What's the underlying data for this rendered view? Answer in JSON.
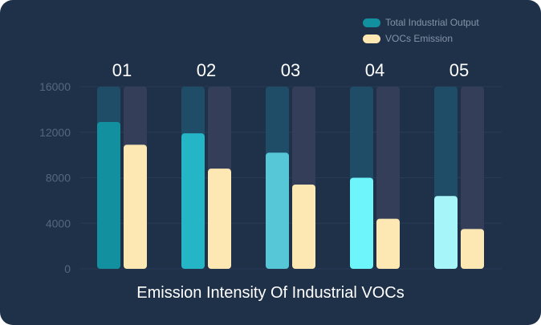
{
  "chart_data": {
    "type": "bar",
    "title": "Emission Intensity Of Industrial VOCs",
    "categories": [
      "01",
      "02",
      "03",
      "04",
      "05"
    ],
    "series": [
      {
        "name": "Total Industrial Output",
        "values": [
          12900,
          11900,
          10200,
          8000,
          6400
        ],
        "colors": [
          "#12909f",
          "#24b5c6",
          "#56c7d6",
          "#6ef5fb",
          "#a6f5f8"
        ]
      },
      {
        "name": "VOCs Emission",
        "values": [
          10900,
          8800,
          7400,
          4400,
          3500
        ],
        "colors": [
          "#fde8b4",
          "#fde8b4",
          "#fde8b4",
          "#fde8b4",
          "#fde8b4"
        ]
      }
    ],
    "ylim": [
      0,
      16000
    ],
    "yticks": [
      0,
      4000,
      8000,
      12000,
      16000
    ],
    "grid": true,
    "legend_position": "top-right",
    "colors": {
      "background": "#1f3149",
      "track_series_1": "#1f4c66",
      "track_series_2": "#353e58",
      "grid": "#2a3c55"
    }
  }
}
